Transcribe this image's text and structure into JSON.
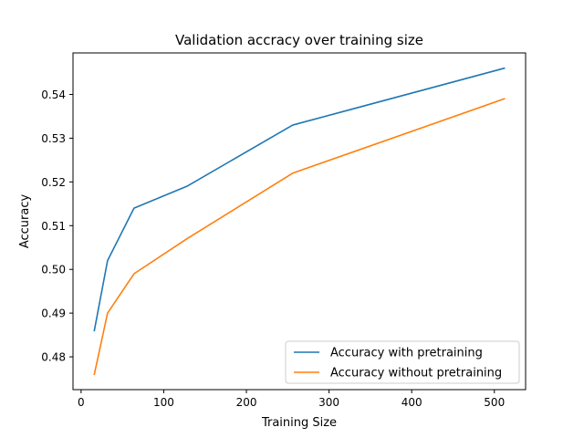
{
  "chart_data": {
    "type": "line",
    "title": "Validation accracy over training size",
    "xlabel": "Training Size",
    "ylabel": "Accuracy",
    "xlim": [
      -9.8,
      537.8
    ],
    "ylim": [
      0.4725,
      0.5495
    ],
    "xticks": [
      0,
      100,
      200,
      300,
      400,
      500
    ],
    "yticks": [
      0.48,
      0.49,
      0.5,
      0.51,
      0.52,
      0.53,
      0.54
    ],
    "ytick_labels": [
      "0.48",
      "0.49",
      "0.50",
      "0.51",
      "0.52",
      "0.53",
      "0.54"
    ],
    "grid": false,
    "legend_position": "lower-right",
    "series": [
      {
        "name": "Accuracy with pretraining",
        "color": "#1f77b4",
        "x": [
          16,
          32,
          64,
          128,
          256,
          512
        ],
        "y": [
          0.486,
          0.502,
          0.514,
          0.519,
          0.533,
          0.546
        ]
      },
      {
        "name": "Accuracy without pretraining",
        "color": "#ff7f0e",
        "x": [
          16,
          32,
          64,
          128,
          256,
          512
        ],
        "y": [
          0.476,
          0.49,
          0.499,
          0.507,
          0.522,
          0.539
        ]
      }
    ]
  }
}
